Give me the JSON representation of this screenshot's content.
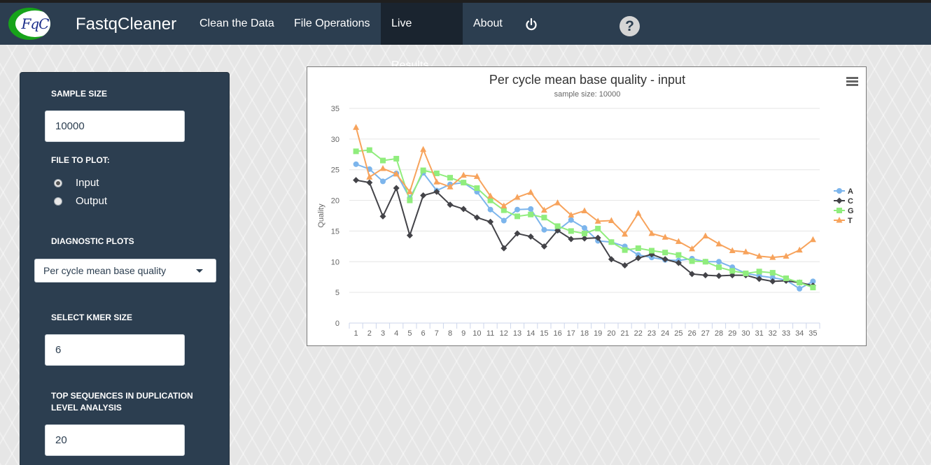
{
  "app": {
    "brand": "FastqCleaner",
    "logo_text": "FqC"
  },
  "nav": {
    "items": [
      {
        "label": "Clean the Data"
      },
      {
        "label": "File Operations"
      },
      {
        "label": "Live Results"
      },
      {
        "label": "About"
      }
    ],
    "active": "Live Results",
    "help_label": "?"
  },
  "sidebar": {
    "sample_size_label": "SAMPLE SIZE",
    "sample_size_value": "10000",
    "file_label": "FILE TO PLOT:",
    "radio_options": [
      {
        "label": "Input",
        "checked": true
      },
      {
        "label": "Output",
        "checked": false
      }
    ],
    "diag_label": "DIAGNOSTIC PLOTS",
    "diag_selected": "Per cycle mean base quality",
    "kmer_label": "SELECT KMER SIZE",
    "kmer_value": "6",
    "dup_label": "TOP SEQUENCES IN DUPLICATION LEVEL ANALYSIS",
    "dup_value": "20"
  },
  "chart_data": {
    "type": "line",
    "title": "Per cycle mean base quality - input",
    "subtitle": "sample size: 10000",
    "xlabel": "",
    "ylabel": "Quality",
    "ylim": [
      0,
      35
    ],
    "yticks": [
      0,
      5,
      10,
      15,
      20,
      25,
      30,
      35
    ],
    "categories": [
      "1",
      "2",
      "3",
      "4",
      "5",
      "6",
      "7",
      "8",
      "9",
      "10",
      "11",
      "12",
      "13",
      "14",
      "15",
      "16",
      "17",
      "18",
      "19",
      "20",
      "21",
      "22",
      "23",
      "24",
      "25",
      "26",
      "27",
      "28",
      "29",
      "30",
      "31",
      "32",
      "33",
      "34",
      "35"
    ],
    "legend_position": "right",
    "series": [
      {
        "name": "A",
        "color": "#7cb5ec",
        "marker": "circle",
        "values": [
          25.9,
          25.1,
          23.1,
          24.4,
          20.4,
          24.5,
          21.6,
          22.6,
          22.9,
          21.4,
          18.5,
          16.7,
          18.5,
          18.6,
          15.2,
          15.1,
          16.8,
          15.5,
          13.4,
          13.2,
          12.5,
          11.1,
          10.7,
          10.3,
          10.2,
          10.5,
          10.0,
          10.0,
          9.1,
          8.1,
          7.7,
          7.4,
          7.0,
          5.6,
          6.8
        ]
      },
      {
        "name": "C",
        "color": "#434348",
        "marker": "diamond",
        "values": [
          23.3,
          22.9,
          17.4,
          22.0,
          14.3,
          20.8,
          21.4,
          19.3,
          18.6,
          17.2,
          16.5,
          12.2,
          14.6,
          14.1,
          12.5,
          15.1,
          13.7,
          13.8,
          13.9,
          10.4,
          9.4,
          10.6,
          11.2,
          10.4,
          9.8,
          8.0,
          7.8,
          7.7,
          7.8,
          7.8,
          7.2,
          6.8,
          6.9,
          6.6,
          6.1
        ]
      },
      {
        "name": "G",
        "color": "#90ed7d",
        "marker": "square",
        "values": [
          28.0,
          28.2,
          26.5,
          26.8,
          20.0,
          24.9,
          24.4,
          23.7,
          22.9,
          22.0,
          20.0,
          18.4,
          17.4,
          17.7,
          17.2,
          15.8,
          15.0,
          14.6,
          15.4,
          13.2,
          11.9,
          12.2,
          11.8,
          11.5,
          11.1,
          10.1,
          10.0,
          9.1,
          8.5,
          8.1,
          8.4,
          8.2,
          7.3,
          6.6,
          5.8
        ]
      },
      {
        "name": "T",
        "color": "#f7a35c",
        "marker": "triangle",
        "values": [
          31.9,
          23.8,
          25.2,
          24.3,
          21.4,
          28.3,
          23.0,
          22.2,
          24.1,
          23.9,
          20.7,
          19.1,
          20.5,
          21.3,
          18.4,
          19.6,
          17.6,
          18.3,
          16.6,
          16.7,
          14.5,
          17.9,
          14.6,
          14.0,
          13.3,
          12.1,
          14.2,
          12.9,
          11.8,
          11.6,
          10.9,
          10.7,
          10.9,
          11.9,
          13.6
        ]
      }
    ]
  }
}
